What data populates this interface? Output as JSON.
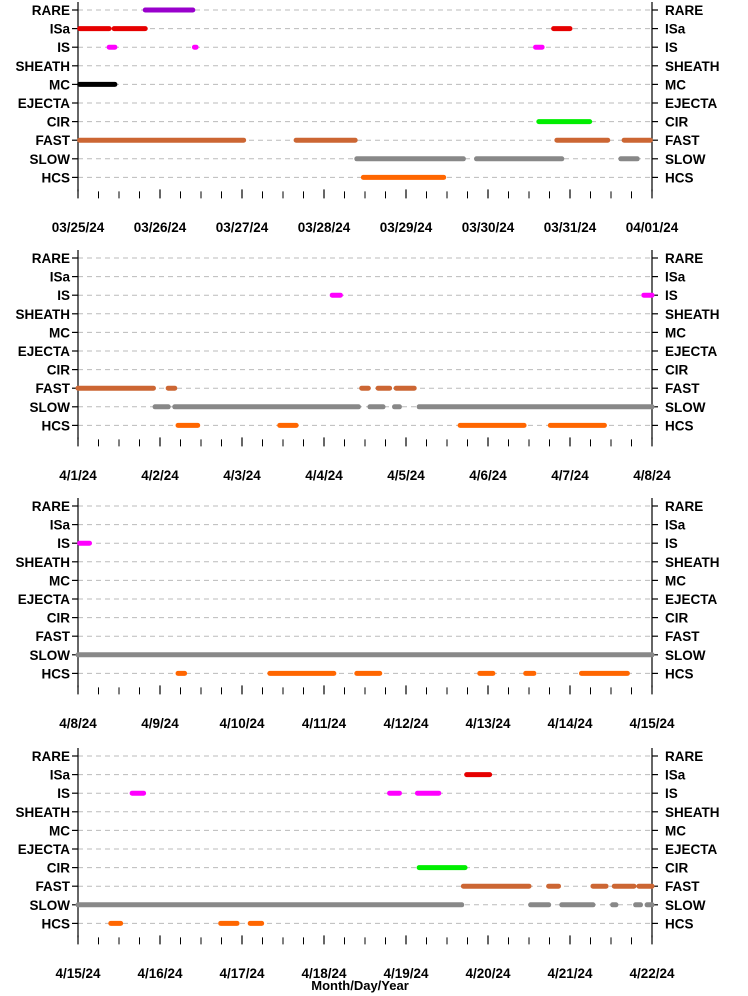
{
  "chart_data": {
    "type": "scatter",
    "xlabel": "Month/Day/Year",
    "category_order": [
      "RARE",
      "ISa",
      "IS",
      "SHEATH",
      "MC",
      "EJECTA",
      "CIR",
      "FAST",
      "SLOW",
      "HCS"
    ],
    "colors": {
      "RARE": "#9900cc",
      "ISa": "#e60000",
      "IS": "#ff00ff",
      "CIR": "#00ee00",
      "FAST": "#cc6633",
      "SLOW": "#888888",
      "HCS": "#ff6600"
    },
    "grid": "dashed horizontal",
    "panels": [
      {
        "xlim": [
          0,
          7
        ],
        "tick_labels": [
          "03/25/24",
          "03/26/24",
          "03/27/24",
          "03/28/24",
          "03/29/24",
          "03/30/24",
          "03/31/24",
          "04/01/24"
        ],
        "segments": [
          {
            "cat": "RARE",
            "from": 0.82,
            "to": 1.4
          },
          {
            "cat": "ISa",
            "from": 0.02,
            "to": 0.38
          },
          {
            "cat": "ISa",
            "from": 0.44,
            "to": 0.82
          },
          {
            "cat": "ISa",
            "from": 5.8,
            "to": 6.0
          },
          {
            "cat": "IS",
            "from": 0.38,
            "to": 0.45
          },
          {
            "cat": "IS",
            "from": 1.42,
            "to": 1.44
          },
          {
            "cat": "IS",
            "from": 5.58,
            "to": 5.66
          },
          {
            "cat": "MC",
            "from": 0.02,
            "to": 0.45
          },
          {
            "cat": "CIR",
            "from": 5.62,
            "to": 6.24
          },
          {
            "cat": "FAST",
            "from": 0.02,
            "to": 2.02
          },
          {
            "cat": "FAST",
            "from": 2.66,
            "to": 3.38
          },
          {
            "cat": "FAST",
            "from": 5.84,
            "to": 6.46
          },
          {
            "cat": "FAST",
            "from": 6.66,
            "to": 6.98
          },
          {
            "cat": "SLOW",
            "from": 3.4,
            "to": 4.7
          },
          {
            "cat": "SLOW",
            "from": 4.86,
            "to": 5.9
          },
          {
            "cat": "SLOW",
            "from": 6.62,
            "to": 6.82
          },
          {
            "cat": "HCS",
            "from": 3.48,
            "to": 4.46
          }
        ]
      },
      {
        "xlim": [
          0,
          7
        ],
        "tick_labels": [
          "4/1/24",
          "4/2/24",
          "4/3/24",
          "4/4/24",
          "4/5/24",
          "4/6/24",
          "4/7/24",
          "4/8/24"
        ],
        "segments": [
          {
            "cat": "IS",
            "from": 3.1,
            "to": 3.2
          },
          {
            "cat": "IS",
            "from": 6.9,
            "to": 7.0
          },
          {
            "cat": "FAST",
            "from": 0.0,
            "to": 0.92
          },
          {
            "cat": "FAST",
            "from": 1.1,
            "to": 1.18
          },
          {
            "cat": "FAST",
            "from": 3.46,
            "to": 3.54
          },
          {
            "cat": "FAST",
            "from": 3.66,
            "to": 3.8
          },
          {
            "cat": "FAST",
            "from": 3.88,
            "to": 4.1
          },
          {
            "cat": "SLOW",
            "from": 0.94,
            "to": 1.1
          },
          {
            "cat": "SLOW",
            "from": 1.18,
            "to": 3.42
          },
          {
            "cat": "SLOW",
            "from": 3.56,
            "to": 3.72
          },
          {
            "cat": "SLOW",
            "from": 3.86,
            "to": 3.92
          },
          {
            "cat": "SLOW",
            "from": 4.16,
            "to": 7.0
          },
          {
            "cat": "HCS",
            "from": 1.22,
            "to": 1.46
          },
          {
            "cat": "HCS",
            "from": 2.46,
            "to": 2.66
          },
          {
            "cat": "HCS",
            "from": 4.66,
            "to": 5.44
          },
          {
            "cat": "HCS",
            "from": 5.76,
            "to": 6.42
          }
        ]
      },
      {
        "xlim": [
          0,
          7
        ],
        "tick_labels": [
          "4/8/24",
          "4/9/24",
          "4/10/24",
          "4/11/24",
          "4/12/24",
          "4/13/24",
          "4/14/24",
          "4/15/24"
        ],
        "segments": [
          {
            "cat": "IS",
            "from": 0.02,
            "to": 0.14
          },
          {
            "cat": "SLOW",
            "from": 0.0,
            "to": 7.0
          },
          {
            "cat": "HCS",
            "from": 1.22,
            "to": 1.3
          },
          {
            "cat": "HCS",
            "from": 2.34,
            "to": 3.12
          },
          {
            "cat": "HCS",
            "from": 3.4,
            "to": 3.68
          },
          {
            "cat": "HCS",
            "from": 4.9,
            "to": 5.06
          },
          {
            "cat": "HCS",
            "from": 5.46,
            "to": 5.56
          },
          {
            "cat": "HCS",
            "from": 6.14,
            "to": 6.7
          }
        ]
      },
      {
        "xlim": [
          0,
          7
        ],
        "tick_labels": [
          "4/15/24",
          "4/16/24",
          "4/17/24",
          "4/18/24",
          "4/19/24",
          "4/20/24",
          "4/21/24",
          "4/22/24"
        ],
        "segments": [
          {
            "cat": "ISa",
            "from": 4.74,
            "to": 5.02
          },
          {
            "cat": "IS",
            "from": 0.66,
            "to": 0.8
          },
          {
            "cat": "IS",
            "from": 3.8,
            "to": 3.92
          },
          {
            "cat": "IS",
            "from": 4.14,
            "to": 4.4
          },
          {
            "cat": "CIR",
            "from": 4.16,
            "to": 4.72
          },
          {
            "cat": "FAST",
            "from": 4.7,
            "to": 5.5
          },
          {
            "cat": "FAST",
            "from": 5.74,
            "to": 5.86
          },
          {
            "cat": "FAST",
            "from": 6.28,
            "to": 6.44
          },
          {
            "cat": "FAST",
            "from": 6.54,
            "to": 6.78
          },
          {
            "cat": "FAST",
            "from": 6.84,
            "to": 7.0
          },
          {
            "cat": "SLOW",
            "from": 0.0,
            "to": 4.68
          },
          {
            "cat": "SLOW",
            "from": 5.52,
            "to": 5.74
          },
          {
            "cat": "SLOW",
            "from": 5.9,
            "to": 6.28
          },
          {
            "cat": "SLOW",
            "from": 6.52,
            "to": 6.56
          },
          {
            "cat": "SLOW",
            "from": 6.8,
            "to": 6.86
          },
          {
            "cat": "SLOW",
            "from": 6.94,
            "to": 7.0
          },
          {
            "cat": "HCS",
            "from": 0.4,
            "to": 0.52
          },
          {
            "cat": "HCS",
            "from": 1.74,
            "to": 1.94
          },
          {
            "cat": "HCS",
            "from": 2.1,
            "to": 2.24
          }
        ]
      }
    ]
  }
}
